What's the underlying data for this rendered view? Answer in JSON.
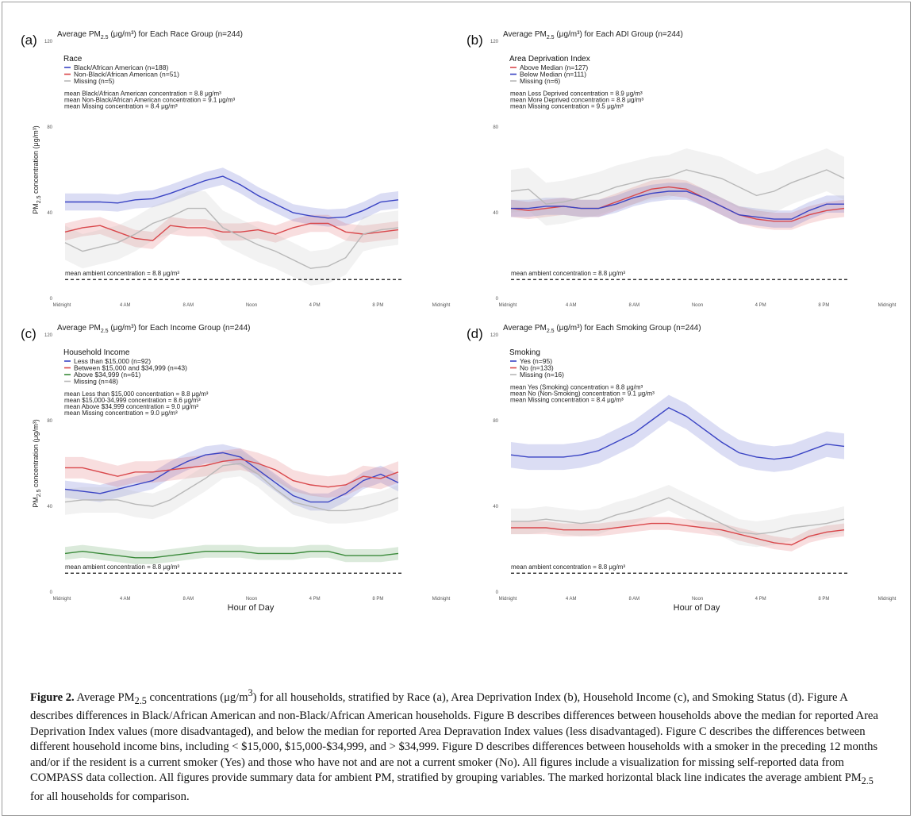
{
  "figure_label": "Figure 2.",
  "caption_parts": {
    "a": " Average PM",
    "b": " concentrations (μg/m",
    "c": ") for all households, stratified by Race (a), Area Deprivation Index (b), Household Income (c), and Smoking Status (d). Figure A describes differences in Black/African American and non-Black/African American households. Figure B describes differences between households above the median for reported Area Deprivation Index values (more disadvantaged), and below the median for reported Area Depravation Index values (less disadvantaged). Figure C describes the differences between different household income bins, including < $15,000, $15,000-$34,999, and > $34,999. Figure D describes differences between households with a smoker in the preceding 12 months and/or if the resident is a current smoker (Yes) and those who have not and are not a current smoker (No). All figures include a visualization for missing self-reported data from COMPASS data collection. All figures provide summary data for ambient PM, stratified by grouping variables. The marked horizontal black line indicates the average ambient PM",
    "d": " for all households for comparison.",
    "sub": "2.5",
    "sup": "3"
  },
  "axis_text": {
    "ylabel_main": "PM",
    "ylabel_sub": "2.5",
    "ylabel_rest": " concentration (μg/m³)",
    "xlabel": "Hour of Day"
  },
  "colors": {
    "blue": "#3a44c4",
    "red": "#d9474b",
    "grey": "#b8b8b8",
    "green": "#3a8a3a"
  },
  "chart_data": [
    {
      "type": "line",
      "panel_letter": "(a)",
      "title_parts": [
        "Average PM",
        "2.5",
        " (μg/m³) for Each Race Group (n=244)"
      ],
      "legend_title": "Race",
      "ylim": [
        0,
        120
      ],
      "yticks": [
        "0",
        "40",
        "80",
        "120"
      ],
      "x_ticks": [
        "Midnight",
        "4 AM",
        "8 AM",
        "Noon",
        "4 PM",
        "8 PM",
        "Midnight"
      ],
      "show_ylabel": true,
      "show_xlabel": false,
      "means": [
        "mean Black/African American concentration = 8.8 μg/m³",
        "mean Non-Black/African American concentration = 9.1 μg/m³",
        "mean Missing concentration = 8.4 μg/m³"
      ],
      "ambient_label": "mean ambient concentration = 8.8 μg/m³",
      "ambient_value": 8.8,
      "series": [
        {
          "name": "Black/African American (n=188)",
          "color_key": "blue",
          "band": 4,
          "values": [
            45,
            45,
            45,
            44.5,
            46,
            46.5,
            49,
            52,
            55,
            57,
            53,
            48,
            44,
            40,
            38.5,
            37.5,
            38,
            41,
            45,
            46
          ]
        },
        {
          "name": "Non-Black/African American (n=51)",
          "color_key": "red",
          "band": 4,
          "values": [
            31,
            33,
            34,
            31,
            28,
            27,
            34,
            33,
            33,
            31,
            31,
            32,
            30,
            33,
            35,
            35,
            31,
            30,
            31,
            32
          ]
        },
        {
          "name": "Missing (n=5)",
          "color_key": "grey",
          "band": 8,
          "values": [
            26,
            22,
            24,
            26,
            30,
            35,
            38,
            42,
            42,
            33,
            29,
            25,
            22,
            18,
            14,
            15,
            19,
            30,
            32,
            33
          ]
        }
      ]
    },
    {
      "type": "line",
      "panel_letter": "(b)",
      "title_parts": [
        "Average PM",
        "2.5",
        " (μg/m³) for Each ADI Group (n=244)"
      ],
      "legend_title": "Area Deprivation Index",
      "ylim": [
        0,
        120
      ],
      "yticks": [
        "0",
        "40",
        "80",
        "120"
      ],
      "x_ticks": [
        "Midnight",
        "4 AM",
        "8 AM",
        "Noon",
        "4 PM",
        "8 PM",
        "Midnight"
      ],
      "show_ylabel": false,
      "show_xlabel": false,
      "means": [
        "mean Less Deprived concentration = 8.9 μg/m³",
        "mean More Deprived concentration = 8.8 μg/m³",
        "mean Missing concentration = 9.5 μg/m³"
      ],
      "ambient_label": "mean ambient concentration = 8.8 μg/m³",
      "ambient_value": 8.8,
      "series": [
        {
          "name": "Above Median (n=127)",
          "color_key": "red",
          "band": 4,
          "values": [
            42,
            41,
            42,
            43,
            42,
            42,
            45,
            48,
            51,
            52,
            51,
            47,
            43,
            39,
            37,
            36,
            36,
            39,
            41,
            42
          ]
        },
        {
          "name": "Below Median (n=111)",
          "color_key": "blue",
          "band": 4,
          "values": [
            42,
            42,
            43,
            43,
            42,
            42,
            44,
            47,
            49,
            50,
            50,
            47,
            43,
            39,
            38,
            37,
            37,
            41,
            44,
            44
          ]
        },
        {
          "name": "Missing (n=6)",
          "color_key": "grey",
          "band": 10,
          "values": [
            50,
            51,
            44,
            45,
            47,
            49,
            52,
            54,
            56,
            57,
            60,
            58,
            56,
            52,
            48,
            50,
            54,
            57,
            60,
            56
          ]
        }
      ]
    },
    {
      "type": "line",
      "panel_letter": "(c)",
      "title_parts": [
        "Average PM",
        "2.5",
        " (μg/m³) for Each Income Group (n=244)"
      ],
      "legend_title": "Household Income",
      "ylim": [
        0,
        120
      ],
      "yticks": [
        "0",
        "40",
        "80",
        "120"
      ],
      "x_ticks": [
        "Midnight",
        "4 AM",
        "8 AM",
        "Noon",
        "4 PM",
        "8 PM",
        "Midnight"
      ],
      "show_ylabel": true,
      "show_xlabel": true,
      "means": [
        "mean Less than $15,000 concentration = 8.8 μg/m³",
        "mean $15,000-34,999 concentration = 8.6 μg/m³",
        "mean Above $34,999 concentration = 9.0 μg/m³",
        "mean Missing concentration = 9.0 μg/m³"
      ],
      "ambient_label": "mean ambient concentration = 8.8 μg/m³",
      "ambient_value": 8.8,
      "series": [
        {
          "name": "Less than $15,000 (n=92)",
          "color_key": "blue",
          "band": 4,
          "values": [
            48,
            47,
            46,
            48,
            50,
            52,
            57,
            61,
            64,
            65,
            63,
            57,
            51,
            45,
            42,
            42,
            46,
            52,
            55,
            51
          ]
        },
        {
          "name": "Between $15,000 and $34,999 (n=43)",
          "color_key": "red",
          "band": 5,
          "values": [
            58,
            58,
            56,
            54,
            56,
            56,
            57,
            58,
            59,
            61,
            62,
            60,
            57,
            52,
            50,
            49,
            50,
            54,
            53,
            56
          ]
        },
        {
          "name": "Above $34,999 (n=61)",
          "color_key": "green",
          "band": 3,
          "values": [
            18,
            19,
            18,
            17,
            16,
            16,
            17,
            18,
            19,
            19,
            19,
            18,
            18,
            18,
            19,
            19,
            17,
            17,
            17,
            18
          ]
        },
        {
          "name": "Missing (n=48)",
          "color_key": "grey",
          "band": 6,
          "values": [
            42,
            43,
            43,
            43,
            41,
            40,
            43,
            48,
            53,
            59,
            60,
            55,
            48,
            42,
            40,
            38,
            38,
            39,
            41,
            44
          ]
        }
      ]
    },
    {
      "type": "line",
      "panel_letter": "(d)",
      "title_parts": [
        "Average PM",
        "2.5",
        " (μg/m³) for Each Smoking Group (n=244)"
      ],
      "legend_title": "Smoking",
      "ylim": [
        0,
        120
      ],
      "yticks": [
        "0",
        "40",
        "80",
        "120"
      ],
      "x_ticks": [
        "Midnight",
        "4 AM",
        "8 AM",
        "Noon",
        "4 PM",
        "8 PM",
        "Midnight"
      ],
      "show_ylabel": false,
      "show_xlabel": true,
      "means": [
        "mean Yes (Smoking) concentration = 8.8 μg/m³",
        "mean No (Non-Smoking) concentration = 9.1 μg/m³",
        "mean Missing concentration = 8.4 μg/m³"
      ],
      "ambient_label": "mean ambient concentration = 8.8 μg/m³",
      "ambient_value": 8.8,
      "series": [
        {
          "name": "Yes (n=95)",
          "color_key": "blue",
          "band": 6,
          "values": [
            64,
            63,
            63,
            63,
            64,
            66,
            70,
            74,
            80,
            86,
            82,
            76,
            70,
            65,
            63,
            62,
            63,
            66,
            69,
            68
          ]
        },
        {
          "name": "No (n=133)",
          "color_key": "red",
          "band": 3,
          "values": [
            30,
            30,
            30,
            29,
            29,
            29,
            30,
            31,
            32,
            32,
            31,
            30,
            29,
            27,
            25,
            23,
            22,
            26,
            28,
            29
          ]
        },
        {
          "name": "Missing (n=16)",
          "color_key": "grey",
          "band": 6,
          "values": [
            33,
            33,
            34,
            33,
            32,
            33,
            36,
            38,
            41,
            44,
            40,
            36,
            32,
            28,
            27,
            28,
            30,
            31,
            32,
            34
          ]
        }
      ]
    }
  ]
}
